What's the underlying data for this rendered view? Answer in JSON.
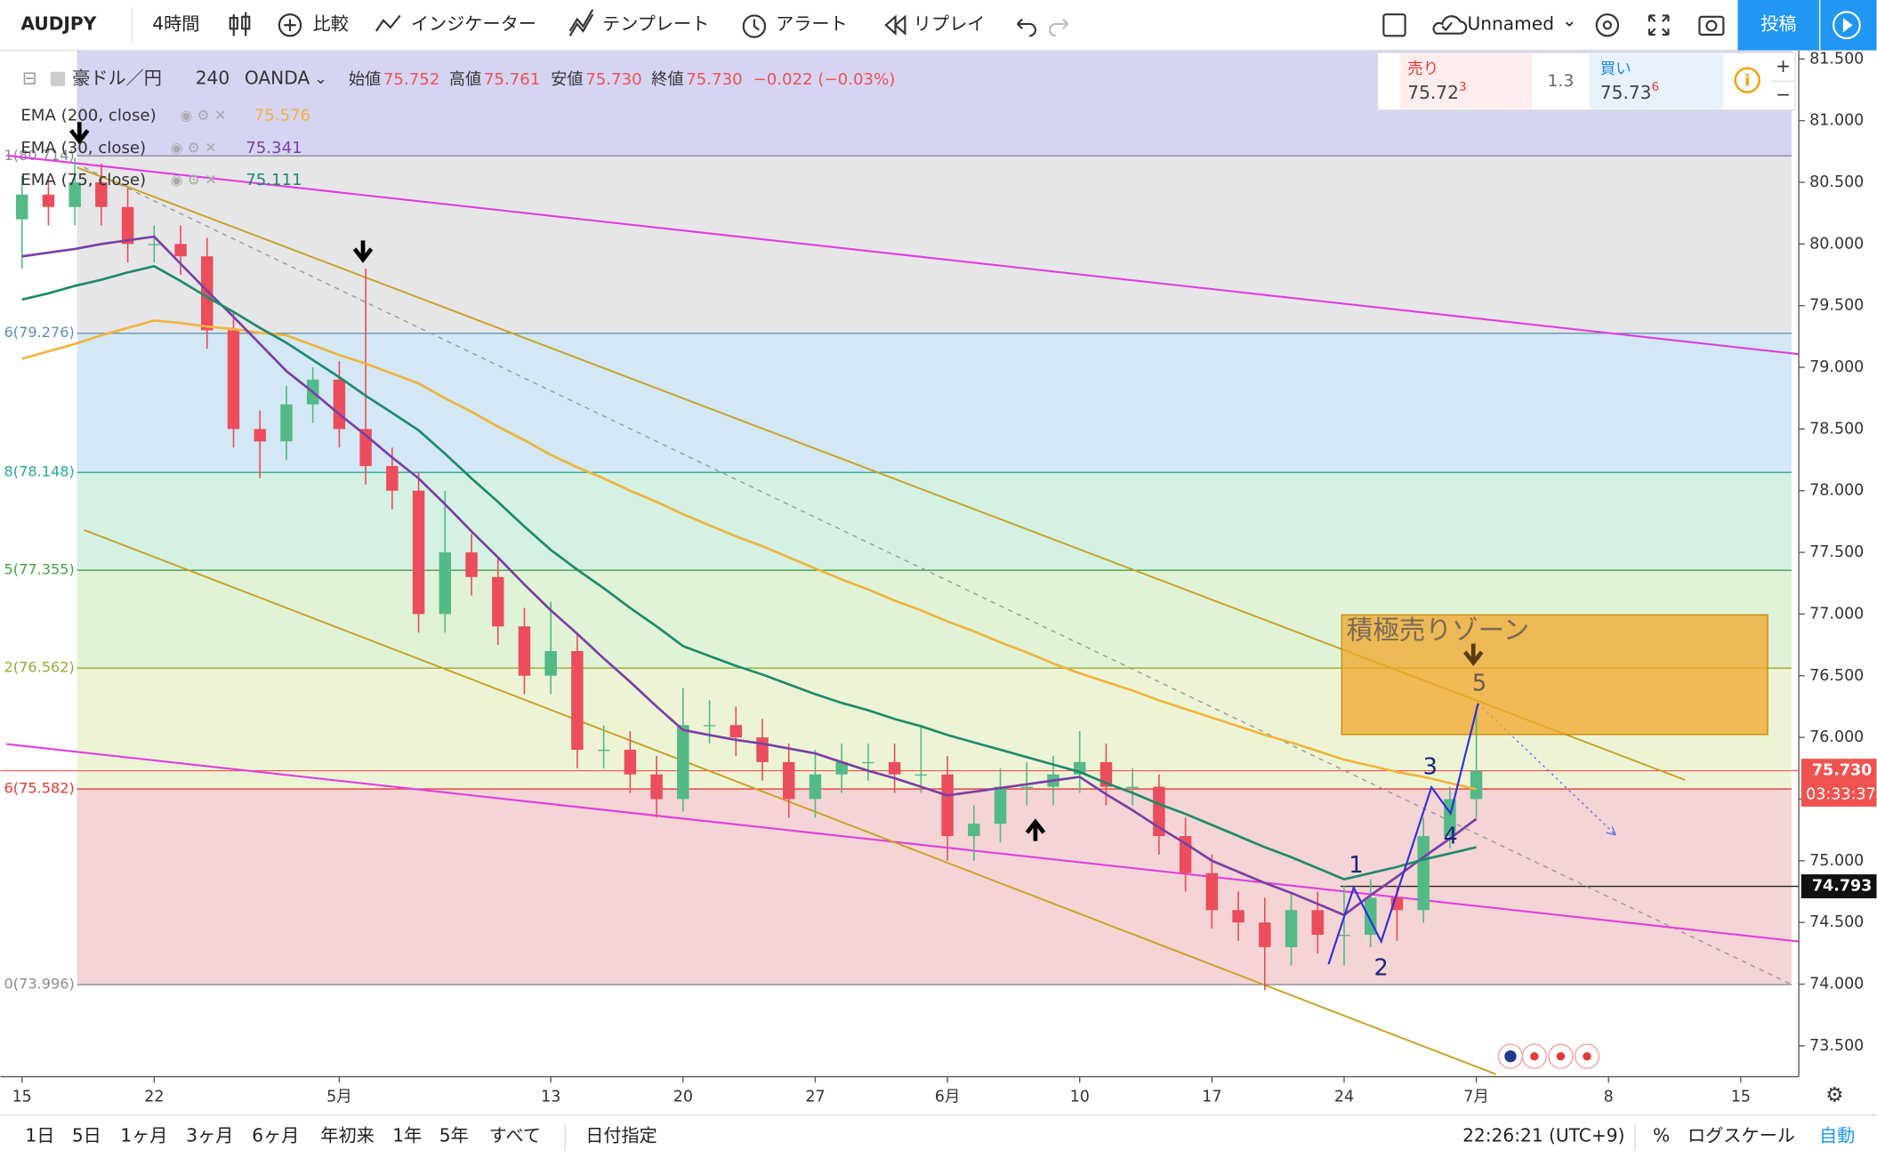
{
  "toolbar": {
    "symbol": "AUDJPY",
    "interval": "4時間",
    "compare": "比較",
    "indicators": "インジケーター",
    "templates": "テンプレート",
    "alert": "アラート",
    "replay": "リプレイ",
    "layout": "Unnamed",
    "publish": "投稿"
  },
  "legend": {
    "instrument": "豪ドル／円",
    "resolution": "240",
    "source": "OANDA",
    "ohlc": [
      [
        "始値",
        "75.752"
      ],
      [
        "高値",
        "75.761"
      ],
      [
        "安値",
        "75.730"
      ],
      [
        "終値",
        "75.730"
      ]
    ],
    "change": "−0.022 (−0.03%)"
  },
  "trade": {
    "sell_label": "売り",
    "sell_price": "75.72",
    "sell_pip": "3",
    "spread": "1.3",
    "buy_label": "買い",
    "buy_price": "75.73",
    "buy_pip": "6"
  },
  "chart_data": {
    "type": "candlestick",
    "categories": [
      "15",
      null,
      null,
      null,
      null,
      "22",
      null,
      null,
      null,
      null,
      null,
      null,
      "5月",
      null,
      null,
      null,
      null,
      null,
      null,
      null,
      "13",
      null,
      null,
      null,
      null,
      "20",
      null,
      null,
      null,
      null,
      "27",
      null,
      null,
      null,
      null,
      "6月",
      null,
      null,
      null,
      null,
      "10",
      null,
      null,
      null,
      null,
      "17",
      null,
      null,
      null,
      null,
      "24",
      null,
      null,
      null,
      null,
      "7月",
      null,
      null,
      null,
      null,
      "8",
      null,
      null,
      null,
      null,
      "15"
    ],
    "open": [
      80.2,
      80.4,
      80.3,
      80.5,
      80.3,
      80.0,
      80.0,
      79.9,
      79.3,
      78.5,
      78.4,
      78.7,
      78.9,
      78.5,
      78.2,
      78.0,
      77.0,
      77.5,
      77.3,
      76.9,
      76.5,
      76.7,
      75.9,
      75.9,
      75.7,
      75.5,
      76.1,
      76.1,
      76.0,
      75.8,
      75.5,
      75.7,
      75.8,
      75.8,
      75.7,
      75.7,
      75.2,
      75.3,
      75.6,
      75.6,
      75.7,
      75.8,
      75.6,
      75.6,
      75.2,
      74.9,
      74.6,
      74.5,
      74.3,
      74.6,
      74.4,
      74.4,
      74.7,
      74.6,
      75.2,
      75.5,
      null,
      null,
      null,
      null,
      null,
      null,
      null,
      null,
      null,
      null
    ],
    "high": [
      80.55,
      80.55,
      80.7,
      80.65,
      80.45,
      80.15,
      80.15,
      80.05,
      79.45,
      78.65,
      78.85,
      79.0,
      79.05,
      79.8,
      78.35,
      78.15,
      78.0,
      77.65,
      77.45,
      77.05,
      77.1,
      76.85,
      76.1,
      76.05,
      75.85,
      76.4,
      76.3,
      76.25,
      76.15,
      75.95,
      75.9,
      75.95,
      75.95,
      75.95,
      76.1,
      75.85,
      75.45,
      75.75,
      75.8,
      75.85,
      76.05,
      75.95,
      75.75,
      75.7,
      75.35,
      75.05,
      74.75,
      74.7,
      74.75,
      74.75,
      74.8,
      74.85,
      74.8,
      75.35,
      75.6,
      76.25,
      null,
      null,
      null,
      null,
      null,
      null,
      null,
      null,
      null,
      null
    ],
    "low": [
      79.8,
      80.15,
      80.15,
      80.15,
      79.85,
      79.85,
      79.75,
      79.15,
      78.35,
      78.1,
      78.25,
      78.55,
      78.35,
      78.05,
      77.85,
      76.85,
      76.85,
      77.15,
      76.75,
      76.35,
      76.35,
      75.75,
      75.75,
      75.55,
      75.35,
      75.4,
      75.95,
      75.85,
      75.65,
      75.35,
      75.35,
      75.55,
      75.65,
      75.55,
      75.55,
      75.0,
      75.0,
      75.15,
      75.45,
      75.45,
      75.55,
      75.45,
      75.45,
      75.05,
      74.75,
      74.45,
      74.35,
      73.95,
      74.15,
      74.25,
      74.15,
      74.3,
      74.35,
      74.5,
      75.1,
      75.35,
      null,
      null,
      null,
      null,
      null,
      null,
      null,
      null,
      null,
      null
    ],
    "close": [
      80.4,
      80.3,
      80.5,
      80.3,
      80.0,
      80.0,
      79.9,
      79.3,
      78.5,
      78.4,
      78.7,
      78.9,
      78.5,
      78.2,
      78.0,
      77.0,
      77.5,
      77.3,
      76.9,
      76.5,
      76.7,
      75.9,
      75.9,
      75.7,
      75.5,
      76.1,
      76.1,
      76.0,
      75.8,
      75.5,
      75.7,
      75.8,
      75.8,
      75.7,
      75.7,
      75.2,
      75.3,
      75.6,
      75.6,
      75.7,
      75.8,
      75.6,
      75.6,
      75.2,
      74.9,
      74.6,
      74.5,
      74.3,
      74.6,
      74.4,
      74.4,
      74.7,
      74.6,
      75.2,
      75.5,
      75.73,
      null,
      null,
      null,
      null,
      null,
      null,
      null,
      null,
      null,
      null
    ],
    "up_color": "#53b987",
    "down_color": "#eb4d5c",
    "series": [
      {
        "name": "EMA (200, close)",
        "color": "#f0b43c",
        "legend_value": "75.576",
        "values": [
          79.07,
          79.13,
          79.19,
          79.26,
          79.32,
          79.38,
          79.36,
          79.33,
          79.31,
          79.28,
          79.26,
          79.18,
          79.1,
          79.03,
          78.95,
          78.87,
          78.75,
          78.64,
          78.52,
          78.41,
          78.29,
          78.19,
          78.1,
          78.0,
          77.91,
          77.81,
          77.72,
          77.63,
          77.55,
          77.46,
          77.37,
          77.28,
          77.2,
          77.11,
          77.03,
          76.94,
          76.86,
          76.77,
          76.69,
          76.6,
          76.52,
          76.45,
          76.38,
          76.3,
          76.23,
          76.16,
          76.09,
          76.02,
          75.96,
          75.89,
          75.82,
          75.77,
          75.72,
          75.68,
          75.63,
          75.58,
          null,
          null,
          null,
          null,
          null,
          null,
          null,
          null,
          null,
          null
        ]
      },
      {
        "name": "EMA (30, close)",
        "color": "#7b3fa6",
        "legend_value": "75.341",
        "values": [
          79.9,
          79.93,
          79.96,
          80.0,
          80.03,
          80.06,
          79.84,
          79.62,
          79.41,
          79.19,
          78.97,
          78.8,
          78.62,
          78.45,
          78.27,
          78.1,
          77.89,
          77.67,
          77.46,
          77.24,
          77.03,
          76.84,
          76.64,
          76.45,
          76.25,
          76.06,
          76.02,
          75.98,
          75.95,
          75.91,
          75.87,
          75.8,
          75.73,
          75.67,
          75.6,
          75.53,
          75.56,
          75.59,
          75.62,
          75.65,
          75.68,
          75.54,
          75.41,
          75.27,
          75.14,
          75.0,
          74.91,
          74.82,
          74.74,
          74.65,
          74.56,
          74.72,
          74.87,
          75.03,
          75.18,
          75.34,
          null,
          null,
          null,
          null,
          null,
          null,
          null,
          null,
          null,
          null
        ]
      },
      {
        "name": "EMA (75, close)",
        "color": "#1e8a6b",
        "legend_value": "75.111",
        "values": [
          79.55,
          79.6,
          79.66,
          79.71,
          79.77,
          79.82,
          79.7,
          79.57,
          79.45,
          79.32,
          79.2,
          79.06,
          78.92,
          78.77,
          78.63,
          78.49,
          78.3,
          78.1,
          77.91,
          77.71,
          77.52,
          77.36,
          77.21,
          77.05,
          76.9,
          76.74,
          76.66,
          76.58,
          76.51,
          76.43,
          76.35,
          76.28,
          76.22,
          76.15,
          76.09,
          76.02,
          75.96,
          75.9,
          75.84,
          75.78,
          75.72,
          75.63,
          75.55,
          75.46,
          75.38,
          75.29,
          75.2,
          75.11,
          75.03,
          74.94,
          74.85,
          74.9,
          74.95,
          75.01,
          75.06,
          75.11,
          null,
          null,
          null,
          null,
          null,
          null,
          null,
          null,
          null,
          null
        ]
      }
    ],
    "ylim": [
      73.25,
      81.59
    ],
    "yticks": [
      {
        "value": 73.5,
        "label": "73.500"
      },
      {
        "value": 74,
        "label": "74.000"
      },
      {
        "value": 74.5,
        "label": "74.500"
      },
      {
        "value": 75,
        "label": "75.000"
      },
      {
        "value": 75.5,
        "label": "75.500"
      },
      {
        "value": 76,
        "label": "76.000"
      },
      {
        "value": 76.5,
        "label": "76.500"
      },
      {
        "value": 77,
        "label": "77.000"
      },
      {
        "value": 77.5,
        "label": "77.500"
      },
      {
        "value": 78,
        "label": "78.000"
      },
      {
        "value": 78.5,
        "label": "78.500"
      },
      {
        "value": 79,
        "label": "79.000"
      },
      {
        "value": 79.5,
        "label": "79.500"
      },
      {
        "value": 80,
        "label": "80.000"
      },
      {
        "value": 80.5,
        "label": "80.500"
      },
      {
        "value": 81,
        "label": "81.000"
      },
      {
        "value": 81.5,
        "label": "81.500"
      }
    ],
    "grid": false,
    "fib_levels": [
      {
        "value": 80.714,
        "label": "1(80.714)",
        "color": "#8c8c9a",
        "fill": "#d6d4f3"
      },
      {
        "value": 79.276,
        "label": "6(79.276)",
        "color": "#5b8fb0",
        "fill": "#e6e6e8"
      },
      {
        "value": 78.148,
        "label": "8(78.148)",
        "color": "#27a79a",
        "fill": "#d3e8f4"
      },
      {
        "value": 77.355,
        "label": "5(77.355)",
        "color": "#43a047",
        "fill": "#d5f1e4"
      },
      {
        "value": 76.562,
        "label": "2(76.562)",
        "color": "#9aa832",
        "fill": "#e0f3d6"
      },
      {
        "value": 75.582,
        "label": "6(75.582)",
        "color": "#e53935",
        "fill": "#edf4d6"
      },
      {
        "value": 73.996,
        "label": "0(73.996)",
        "color": "#8c8c8c",
        "fill": "#f4d4d4"
      }
    ],
    "last_price": {
      "value": 75.73,
      "label": "75.730"
    },
    "countdown": "03:33:37",
    "marker_price": {
      "value": 74.793,
      "label": "74.793"
    },
    "annotations": {
      "zone": "積極売りゾーン",
      "waves": [
        "1",
        "2",
        "3",
        "4",
        "5"
      ]
    }
  },
  "bottom_bar": {
    "ranges": [
      "1日",
      "5日",
      "1ヶ月",
      "3ヶ月",
      "6ヶ月",
      "年初来",
      "1年",
      "5年",
      "すべて"
    ],
    "goto": "日付指定",
    "clock": "22:26:21 (UTC+9)",
    "percent": "%",
    "log": "ログスケール",
    "auto": "自動"
  }
}
